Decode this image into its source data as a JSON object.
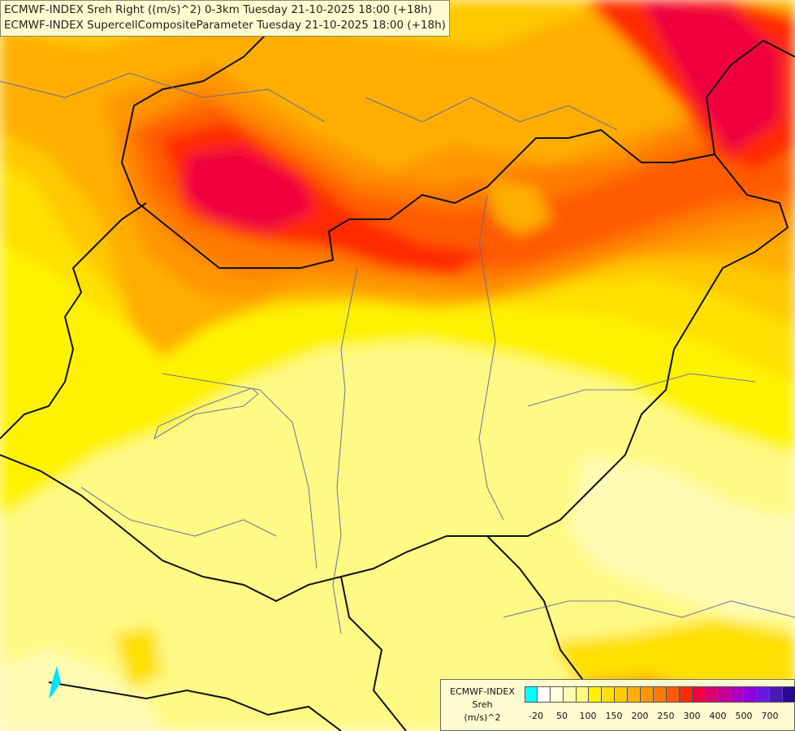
{
  "titles": {
    "line1": "ECMWF-INDEX Sreh Right ((m/s)^2) 0-3km Tuesday 21-10-2025 18:00 (+18h)",
    "line2": "ECMWF-INDEX SupercellCompositeParameter Tuesday 21-10-2025 18:00 (+18h)"
  },
  "legend": {
    "source": "ECMWF-INDEX",
    "param": "Sreh",
    "units": "(m/s)^2",
    "colors": [
      "#00ffff",
      "#ffffff",
      "#fffee0",
      "#fffbb4",
      "#fff985",
      "#fff200",
      "#ffe000",
      "#ffc800",
      "#ffae00",
      "#ff9500",
      "#ff7a00",
      "#ff5c00",
      "#ff2a00",
      "#f0003c",
      "#d90071",
      "#c60096",
      "#b000c0",
      "#8c00e0",
      "#6a1ae0",
      "#4a1ab0",
      "#2a0a90",
      "#10006a"
    ],
    "ticks": [
      "-20",
      "50",
      "100",
      "150",
      "200",
      "250",
      "300",
      "400",
      "500",
      "700"
    ]
  }
}
